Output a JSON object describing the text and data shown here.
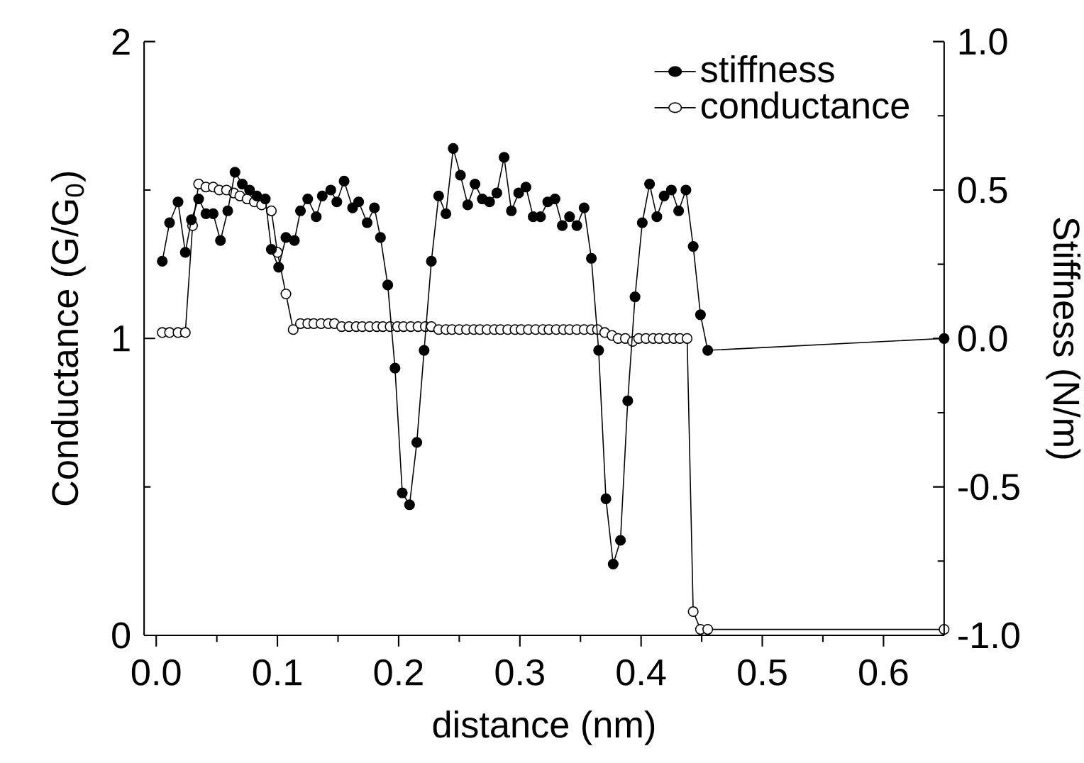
{
  "chart_data": {
    "type": "line",
    "xlabel": "distance (nm)",
    "ylabel": "Conductance (G/G$_{0}$)",
    "y2label": "Stiffness (N/m)",
    "xlim": [
      -0.01,
      0.65
    ],
    "ylim": [
      0,
      2
    ],
    "y2lim": [
      -1.0,
      1.0
    ],
    "xticks": [
      {
        "value": 0,
        "label": "0.0"
      },
      {
        "value": 0.1,
        "label": "0.1"
      },
      {
        "value": 0.2,
        "label": "0.2"
      },
      {
        "value": 0.3,
        "label": "0.3"
      },
      {
        "value": 0.4,
        "label": "0.4"
      },
      {
        "value": 0.5,
        "label": "0.5"
      },
      {
        "value": 0.6,
        "label": "0.6"
      }
    ],
    "yticks": [
      0,
      1,
      2
    ],
    "y2ticks": [
      {
        "value": -1,
        "label": "-1.0"
      },
      {
        "value": -0.5,
        "label": "-0.5"
      },
      {
        "value": 0,
        "label": "0.0"
      },
      {
        "value": 0.5,
        "label": "0.5"
      },
      {
        "value": 1,
        "label": "1.0"
      }
    ],
    "legend": "top right",
    "marker": "circle",
    "grid": false,
    "series": [
      {
        "name": "stiffness",
        "color": "#000000",
        "axis": "y2",
        "x": [
          0.005,
          0.011,
          0.018,
          0.024,
          0.029,
          0.035,
          0.041,
          0.047,
          0.053,
          0.059,
          0.065,
          0.071,
          0.077,
          0.083,
          0.09,
          0.095,
          0.101,
          0.107,
          0.114,
          0.119,
          0.125,
          0.132,
          0.137,
          0.144,
          0.149,
          0.155,
          0.162,
          0.167,
          0.174,
          0.18,
          0.185,
          0.191,
          0.197,
          0.203,
          0.209,
          0.215,
          0.221,
          0.227,
          0.233,
          0.239,
          0.245,
          0.251,
          0.257,
          0.263,
          0.269,
          0.275,
          0.281,
          0.287,
          0.293,
          0.299,
          0.305,
          0.311,
          0.317,
          0.323,
          0.329,
          0.335,
          0.341,
          0.347,
          0.353,
          0.359,
          0.365,
          0.371,
          0.377,
          0.383,
          0.389,
          0.395,
          0.401,
          0.407,
          0.413,
          0.419,
          0.425,
          0.431,
          0.437,
          0.443,
          0.449,
          0.455,
          0.65
        ],
        "values": [
          0.26,
          0.39,
          0.46,
          0.29,
          0.4,
          0.47,
          0.42,
          0.42,
          0.33,
          0.43,
          0.56,
          0.52,
          0.5,
          0.48,
          0.47,
          0.3,
          0.24,
          0.34,
          0.33,
          0.43,
          0.47,
          0.41,
          0.48,
          0.5,
          0.46,
          0.53,
          0.44,
          0.46,
          0.39,
          0.44,
          0.34,
          0.18,
          -0.1,
          -0.52,
          -0.56,
          -0.35,
          -0.04,
          0.26,
          0.48,
          0.42,
          0.64,
          0.55,
          0.45,
          0.52,
          0.47,
          0.46,
          0.49,
          0.61,
          0.43,
          0.49,
          0.51,
          0.41,
          0.41,
          0.46,
          0.47,
          0.38,
          0.41,
          0.38,
          0.44,
          0.27,
          -0.04,
          -0.54,
          -0.76,
          -0.68,
          -0.21,
          0.14,
          0.39,
          0.52,
          0.41,
          0.48,
          0.5,
          0.43,
          0.5,
          0.31,
          0.08,
          -0.04,
          0.0
        ]
      },
      {
        "name": "conductance",
        "color": "#ffffff",
        "axis": "y",
        "x": [
          0.005,
          0.011,
          0.018,
          0.024,
          0.03,
          0.035,
          0.041,
          0.047,
          0.052,
          0.058,
          0.064,
          0.069,
          0.075,
          0.081,
          0.087,
          0.095,
          0.1,
          0.107,
          0.113,
          0.119,
          0.125,
          0.13,
          0.136,
          0.142,
          0.147,
          0.153,
          0.159,
          0.165,
          0.17,
          0.176,
          0.182,
          0.187,
          0.193,
          0.199,
          0.204,
          0.21,
          0.216,
          0.222,
          0.227,
          0.233,
          0.239,
          0.244,
          0.25,
          0.256,
          0.262,
          0.267,
          0.273,
          0.279,
          0.284,
          0.29,
          0.296,
          0.301,
          0.307,
          0.313,
          0.319,
          0.324,
          0.33,
          0.336,
          0.341,
          0.347,
          0.353,
          0.359,
          0.364,
          0.37,
          0.376,
          0.381,
          0.387,
          0.393,
          0.398,
          0.404,
          0.41,
          0.415,
          0.421,
          0.427,
          0.432,
          0.438,
          0.443,
          0.449,
          0.455,
          0.65
        ],
        "values": [
          1.02,
          1.02,
          1.02,
          1.02,
          1.38,
          1.52,
          1.51,
          1.51,
          1.5,
          1.5,
          1.49,
          1.48,
          1.47,
          1.46,
          1.45,
          1.43,
          1.29,
          1.15,
          1.03,
          1.05,
          1.05,
          1.05,
          1.05,
          1.05,
          1.05,
          1.04,
          1.04,
          1.04,
          1.04,
          1.04,
          1.04,
          1.04,
          1.04,
          1.04,
          1.04,
          1.04,
          1.04,
          1.04,
          1.04,
          1.03,
          1.03,
          1.03,
          1.03,
          1.03,
          1.03,
          1.03,
          1.03,
          1.03,
          1.03,
          1.03,
          1.03,
          1.03,
          1.03,
          1.03,
          1.03,
          1.03,
          1.03,
          1.03,
          1.03,
          1.03,
          1.03,
          1.03,
          1.03,
          1.02,
          1.01,
          1.0,
          1.0,
          0.99,
          1.0,
          1.0,
          1.0,
          1.0,
          1.0,
          1.0,
          1.0,
          1.0,
          0.08,
          0.02,
          0.02,
          0.02
        ]
      }
    ]
  }
}
